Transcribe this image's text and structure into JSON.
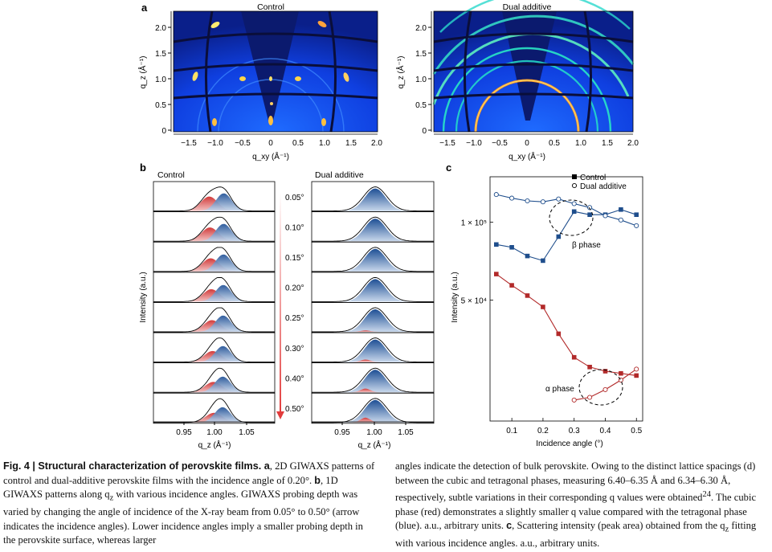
{
  "figure": {
    "panel_a": {
      "letter": "a",
      "left_title": "Control",
      "right_title": "Dual additive",
      "y_label": "q_z (Å⁻¹)",
      "x_label": "q_xy (Å⁻¹)",
      "y_ticks": [
        "0",
        "0.5",
        "1.0",
        "1.5",
        "2.0"
      ],
      "x_ticks": [
        "−1.5",
        "−1.0",
        "−0.5",
        "0",
        "0.5",
        "1.0",
        "1.5",
        "2.0"
      ]
    },
    "panel_b": {
      "letter": "b",
      "left_title": "Control",
      "right_title": "Dual additive",
      "y_label": "Intensity (a.u.)",
      "x_label": "q_z (Å⁻¹)",
      "x_ticks": [
        "0.95",
        "1.00",
        "1.05"
      ],
      "angles": [
        "0.05°",
        "0.10°",
        "0.15°",
        "0.20°",
        "0.25°",
        "0.30°",
        "0.40°",
        "0.50°"
      ]
    },
    "panel_c": {
      "letter": "c",
      "legend": [
        "Control",
        "Dual additive"
      ],
      "annotations": [
        "β phase",
        "α phase"
      ]
    }
  },
  "chart_data": {
    "type": "line",
    "xlabel": "Incidence angle (°)",
    "ylabel": "Intensity (a.u.)",
    "x_ticks": [
      "0.1",
      "0.2",
      "0.3",
      "0.4",
      "0.5"
    ],
    "y_ticks": [
      "5 × 10⁴",
      "1 × 10⁵"
    ],
    "y_scale": "log",
    "x": [
      0.05,
      0.1,
      0.15,
      0.2,
      0.25,
      0.3,
      0.35,
      0.4,
      0.45,
      0.5
    ],
    "series": [
      {
        "name": "Control",
        "phase": "β phase",
        "marker": "filled-square",
        "color": "#1f4e8c",
        "values": [
          82000,
          80000,
          74000,
          71000,
          88000,
          110000,
          107000,
          107000,
          112000,
          107000
        ]
      },
      {
        "name": "Dual additive",
        "phase": "β phase",
        "marker": "open-circle",
        "color": "#1f4e8c",
        "values": [
          128000,
          124000,
          121000,
          120000,
          123000,
          118000,
          114000,
          106000,
          102000,
          97000
        ]
      },
      {
        "name": "Control",
        "phase": "α phase",
        "marker": "filled-square",
        "color": "#b22a2a",
        "values": [
          63000,
          57000,
          52000,
          47000,
          37000,
          30000,
          27500,
          26500,
          26000,
          25500
        ]
      },
      {
        "name": "Dual additive",
        "phase": "α phase",
        "marker": "open-circle",
        "color": "#b22a2a",
        "x": [
          0.3,
          0.35,
          0.4,
          0.45,
          0.5
        ],
        "values": [
          20500,
          21000,
          22500,
          24500,
          27000
        ]
      }
    ]
  },
  "caption": {
    "left": [
      {
        "text": "Fig. 4 | Structural characterization of perovskite films. a",
        "bold": true
      },
      {
        "text": ", 2D GIWAXS patterns of control and dual-additive perovskite films with the incidence angle of 0.20°. ",
        "bold": false
      },
      {
        "text": "b",
        "bold": true
      },
      {
        "text": ", 1D GIWAXS patterns along q",
        "bold": false
      },
      {
        "text": "z",
        "bold": false,
        "sub": true
      },
      {
        "text": " with various incidence angles. GIWAXS probing depth was varied by changing the angle of incidence of the X-ray beam from 0.05° to 0.50° (arrow indicates the incidence angles). Lower incidence angles imply a smaller probing depth in the perovskite surface, whereas larger",
        "bold": false
      }
    ],
    "right": [
      {
        "text": "angles indicate the detection of bulk perovskite. Owing to the distinct lattice spacings (d) between the cubic and tetragonal phases, measuring 6.40–6.35 Å and 6.34–6.30 Å, respectively, subtle variations in their corresponding q values were obtained",
        "bold": false
      },
      {
        "text": "24",
        "bold": false,
        "sup": true
      },
      {
        "text": ". The cubic phase (red) demonstrates a slightly smaller q value compared with the tetragonal phase (blue). a.u., arbitrary units. ",
        "bold": false
      },
      {
        "text": "c",
        "bold": true
      },
      {
        "text": ", Scattering intensity (peak area) obtained from the q",
        "bold": false
      },
      {
        "text": "z",
        "bold": false,
        "sub": true
      },
      {
        "text": " fitting with various incidence angles. a.u., arbitrary units.",
        "bold": false
      }
    ]
  }
}
